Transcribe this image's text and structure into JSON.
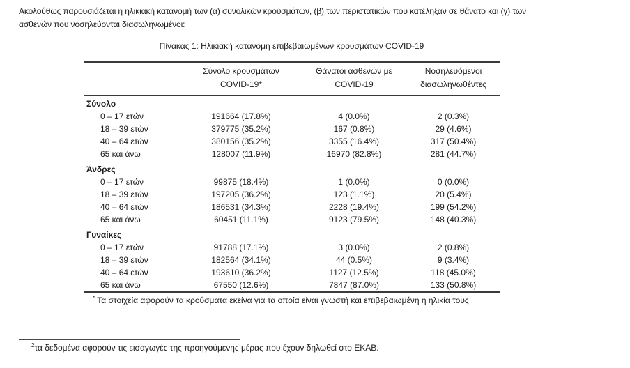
{
  "intro": {
    "lines": [
      "Ακολούθως παρουσιάζεται η ηλικιακή κατανομή των (α) συνολικών κρουσμάτων, (β) των περιστατικών που κατέληξαν σε θάνατο και (γ) των",
      "ασθενών που νοσηλεύονται διασωληνωμένοι:"
    ]
  },
  "table": {
    "title": "Πίνακας 1: Ηλικιακή κατανομή επιβεβαιωμένων κρουσμάτων COVID-19",
    "headers": [
      [
        "Σύνολο κρουσμάτων",
        "COVID-19*"
      ],
      [
        "Θάνατοι ασθενών με",
        "COVID-19"
      ],
      [
        "Νοσηλευόμενοι",
        "διασωληνωθέντες"
      ]
    ],
    "groups": [
      {
        "label": "Σύνολο",
        "rows": [
          {
            "age": "0 – 17 ετών",
            "cases": "191664 (17.8%)",
            "deaths": "4 (0.0%)",
            "intubated": "2 (0.3%)"
          },
          {
            "age": "18 – 39 ετών",
            "cases": "379775 (35.2%)",
            "deaths": "167 (0.8%)",
            "intubated": "29 (4.6%)"
          },
          {
            "age": "40 – 64 ετών",
            "cases": "380156 (35.2%)",
            "deaths": "3355 (16.4%)",
            "intubated": "317 (50.4%)"
          },
          {
            "age": "65 και άνω",
            "cases": "128007 (11.9%)",
            "deaths": "16970 (82.8%)",
            "intubated": "281 (44.7%)"
          }
        ]
      },
      {
        "label": "Άνδρες",
        "rows": [
          {
            "age": "0 – 17 ετών",
            "cases": "99875 (18.4%)",
            "deaths": "1 (0.0%)",
            "intubated": "0 (0.0%)"
          },
          {
            "age": "18 – 39 ετών",
            "cases": "197205 (36.2%)",
            "deaths": "123 (1.1%)",
            "intubated": "20 (5.4%)"
          },
          {
            "age": "40 – 64 ετών",
            "cases": "186531 (34.3%)",
            "deaths": "2228 (19.4%)",
            "intubated": "199 (54.2%)"
          },
          {
            "age": "65 και άνω",
            "cases": "60451 (11.1%)",
            "deaths": "9123 (79.5%)",
            "intubated": "148 (40.3%)"
          }
        ]
      },
      {
        "label": "Γυναίκες",
        "rows": [
          {
            "age": "0 – 17 ετών",
            "cases": "91788 (17.1%)",
            "deaths": "3 (0.0%)",
            "intubated": "2 (0.8%)"
          },
          {
            "age": "18 – 39 ετών",
            "cases": "182564 (34.1%)",
            "deaths": "44 (0.5%)",
            "intubated": "9 (3.4%)"
          },
          {
            "age": "40 – 64 ετών",
            "cases": "193610 (36.2%)",
            "deaths": "1127 (12.5%)",
            "intubated": "118 (45.0%)"
          },
          {
            "age": "65 και άνω",
            "cases": "67550 (12.6%)",
            "deaths": "7847 (87.0%)",
            "intubated": "133 (50.8%)"
          }
        ]
      }
    ],
    "footnote": {
      "marker": "*",
      "text": " Τα στοιχεία αφορούν τα κρούσματα εκείνα για τα οποία είναι γνωστή και επιβεβαιωμένη η ηλικία τους"
    }
  },
  "page_footnote": {
    "marker": "2",
    "text": "τα δεδομένα αφορούν τις εισαγωγές της προηγούμενης μέρας που έχουν δηλωθεί στο ΕΚΑΒ."
  },
  "colors": {
    "text": "#1c1c1c",
    "table_border": "#3a3a3a",
    "footnote_rule": "#4a4a4a",
    "background": "#ffffff"
  }
}
